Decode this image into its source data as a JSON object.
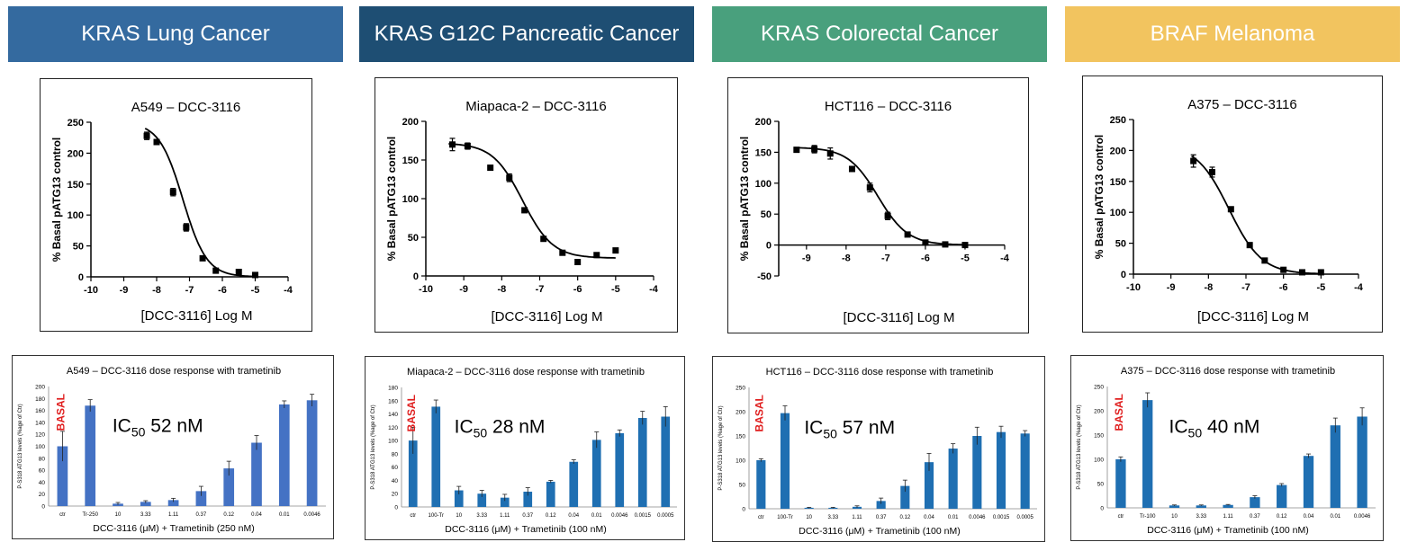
{
  "colors": {
    "lung": "#346a9f",
    "pancreatic": "#1e4e73",
    "colorectal": "#49a07d",
    "melanoma": "#f2c45f",
    "bar": "#4472c4",
    "bar2": "#1f6fb2",
    "basal": "#e02020"
  },
  "panels": [
    {
      "header": "KRAS Lung Cancer",
      "header_color": "#346a9f",
      "curve": {
        "chart_data": {
          "type": "scatter",
          "title": "A549 – DCC-3116",
          "xlabel": "[DCC-3116] Log M",
          "ylabel": "% Basal pATG13 control",
          "xlim": [
            -10,
            -4
          ],
          "ylim": [
            0,
            250
          ],
          "x_ticks": [
            "-10",
            "-9",
            "-8",
            "-7",
            "-6",
            "-5",
            "-4"
          ],
          "y_ticks": [
            "0",
            "50",
            "100",
            "150",
            "200",
            "250"
          ],
          "x": [
            -8.3,
            -8.0,
            -7.5,
            -7.1,
            -6.6,
            -6.2,
            -5.5,
            -5.0
          ],
          "y": [
            228,
            218,
            137,
            80,
            30,
            10,
            8,
            3
          ],
          "err": [
            6,
            4,
            6,
            6,
            3,
            3,
            2,
            2
          ],
          "fit": {
            "top": 250,
            "bottom": 0,
            "logIC50": -7.2,
            "hill": 1.2,
            "xmin": -8.35
          }
        }
      },
      "bars": {
        "chart_data": {
          "type": "bar",
          "title": "A549 – DCC-3116 dose response with trametinib",
          "xlabel": "DCC-3116 (μM) + Trametinib (250 nM)",
          "ylabel": "P-S318 ATG13 levels (%age of Ctr)",
          "ylim": [
            0,
            200
          ],
          "y_ticks": [
            "0",
            "20",
            "40",
            "60",
            "80",
            "100",
            "120",
            "140",
            "160",
            "180",
            "200"
          ],
          "categories": [
            "ctr",
            "Tr-250",
            "10",
            "3.33",
            "1.11",
            "0.37",
            "0.12",
            "0.04",
            "0.01",
            "0.0046"
          ],
          "values": [
            100,
            168,
            4,
            7,
            10,
            25,
            63,
            106,
            170,
            177
          ],
          "err": [
            25,
            10,
            2,
            2,
            3,
            8,
            12,
            12,
            6,
            10
          ],
          "basal": "BASAL",
          "ic50_prefix": "IC",
          "ic50_sub": "50",
          "ic50_value": "52 nM"
        }
      }
    },
    {
      "header": "KRAS G12C Pancreatic Cancer",
      "header_color": "#1e4e73",
      "curve": {
        "chart_data": {
          "type": "scatter",
          "title": "Miapaca-2 – DCC-3116",
          "xlabel": "[DCC-3116] Log M",
          "ylabel": "% Basal pATG13 control",
          "xlim": [
            -10,
            -4
          ],
          "ylim": [
            0,
            200
          ],
          "x_ticks": [
            "-10",
            "-9",
            "-8",
            "-7",
            "-6",
            "-5",
            "-4"
          ],
          "y_ticks": [
            "0",
            "50",
            "100",
            "150",
            "200"
          ],
          "x": [
            -9.3,
            -8.9,
            -8.3,
            -7.8,
            -7.4,
            -6.9,
            -6.4,
            -6.0,
            -5.5,
            -5.0
          ],
          "y": [
            170,
            168,
            140,
            127,
            85,
            48,
            30,
            18,
            27,
            33
          ],
          "err": [
            8,
            4,
            3,
            5,
            3,
            3,
            2,
            2,
            2,
            2
          ],
          "fit": {
            "top": 172,
            "bottom": 23,
            "logIC50": -7.45,
            "hill": 1.1,
            "xmin": -9.4
          }
        }
      },
      "bars": {
        "chart_data": {
          "type": "bar",
          "title": "Miapaca-2 – DCC-3116 dose response with trametinib",
          "xlabel": "DCC-3116 (μM) + Trametinib (100 nM)",
          "ylabel": "P-S318 ATG13 levels (%age of Ctr)",
          "ylim": [
            0,
            180
          ],
          "y_ticks": [
            "0",
            "20",
            "40",
            "60",
            "80",
            "100",
            "120",
            "140",
            "160",
            "180"
          ],
          "categories": [
            "ctr",
            "100-Tr",
            "10",
            "3.33",
            "1.11",
            "0.37",
            "0.12",
            "0.04",
            "0.01",
            "0.0046",
            "0.0015",
            "0.0005"
          ],
          "values": [
            100,
            151,
            25,
            20,
            14,
            23,
            38,
            68,
            101,
            111,
            134,
            136
          ],
          "err": [
            20,
            10,
            6,
            5,
            5,
            6,
            2,
            3,
            12,
            5,
            10,
            15
          ],
          "basal": "BASAL",
          "ic50_prefix": "IC",
          "ic50_sub": "50",
          "ic50_value": "28 nM"
        }
      }
    },
    {
      "header": "KRAS Colorectal Cancer",
      "header_color": "#49a07d",
      "curve": {
        "chart_data": {
          "type": "scatter",
          "title": "HCT116 – DCC-3116",
          "xlabel": "[DCC-3116] Log M",
          "ylabel": "% Basal pATG13 control",
          "xlim": [
            -9.7,
            -4
          ],
          "ylim": [
            -50,
            200
          ],
          "x_ticks": [
            "-9",
            "-8",
            "-7",
            "-6",
            "-5",
            "-4"
          ],
          "y_ticks": [
            "-50",
            "0",
            "50",
            "100",
            "150",
            "200"
          ],
          "x": [
            -9.25,
            -8.8,
            -8.4,
            -7.85,
            -7.4,
            -6.95,
            -6.45,
            -6.0,
            -5.5,
            -5.0
          ],
          "y": [
            154,
            155,
            148,
            123,
            93,
            47,
            17,
            4,
            1,
            0
          ],
          "err": [
            3,
            6,
            9,
            3,
            7,
            6,
            3,
            3,
            2,
            2
          ],
          "fit": {
            "top": 158,
            "bottom": 0,
            "logIC50": -7.2,
            "hill": 1.15,
            "xmin": -9.3
          }
        }
      },
      "bars": {
        "chart_data": {
          "type": "bar",
          "title": "HCT116 – DCC-3116 dose response with trametinib",
          "xlabel": "DCC-3116 (μM) + Trametinib (100 nM)",
          "ylabel": "P-S318 ATG13 levels (%age of Ctr)",
          "ylim": [
            0,
            250
          ],
          "y_ticks": [
            "0",
            "50",
            "100",
            "150",
            "200",
            "250"
          ],
          "categories": [
            "ctr",
            "100-Tr",
            "10",
            "3.33",
            "1.11",
            "0.37",
            "0.12",
            "0.04",
            "0.01",
            "0.0046",
            "0.0015",
            "0.0005"
          ],
          "values": [
            100,
            197,
            2,
            2,
            4,
            16,
            47,
            96,
            124,
            150,
            158,
            155
          ],
          "err": [
            3,
            15,
            1,
            1,
            2,
            6,
            12,
            18,
            10,
            18,
            12,
            6
          ],
          "basal": "BASAL",
          "ic50_prefix": "IC",
          "ic50_sub": "50",
          "ic50_value": "57 nM"
        }
      }
    },
    {
      "header": "BRAF Melanoma",
      "header_color": "#f2c45f",
      "curve": {
        "chart_data": {
          "type": "scatter",
          "title": "A375 – DCC-3116",
          "xlabel": "[DCC-3116] Log M",
          "ylabel": "% Basal pATG13 control",
          "xlim": [
            -10,
            -4
          ],
          "ylim": [
            0,
            250
          ],
          "x_ticks": [
            "-10",
            "-9",
            "-8",
            "-7",
            "-6",
            "-5",
            "-4"
          ],
          "y_ticks": [
            "0",
            "50",
            "100",
            "150",
            "200",
            "250"
          ],
          "x": [
            -8.4,
            -7.9,
            -7.4,
            -6.9,
            -6.5,
            -6.0,
            -5.5,
            -5.0
          ],
          "y": [
            183,
            165,
            105,
            47,
            22,
            7,
            3,
            3
          ],
          "err": [
            10,
            8,
            3,
            3,
            2,
            2,
            2,
            2
          ],
          "fit": {
            "top": 210,
            "bottom": 0,
            "logIC50": -7.45,
            "hill": 1.0,
            "xmin": -8.45
          }
        }
      },
      "bars": {
        "chart_data": {
          "type": "bar",
          "title": "A375 – DCC-3116 dose response with trametinib",
          "xlabel": "DCC-3116 (μM) + Trametinib (100 nM)",
          "ylabel": "P-S318 ATG13 levels (%age of Ctr)",
          "ylim": [
            0,
            250
          ],
          "y_ticks": [
            "0",
            "50",
            "100",
            "150",
            "200",
            "250"
          ],
          "categories": [
            "ctr",
            "Tr-100",
            "10",
            "3.33",
            "1.11",
            "0.37",
            "0.12",
            "0.04",
            "0.01",
            "0.0046"
          ],
          "values": [
            100,
            222,
            5,
            5,
            6,
            22,
            47,
            107,
            170,
            188
          ],
          "err": [
            5,
            15,
            1,
            1,
            1,
            3,
            3,
            4,
            15,
            18
          ],
          "basal": "BASAL",
          "ic50_prefix": "IC",
          "ic50_sub": "50",
          "ic50_value": "40 nM"
        }
      }
    }
  ]
}
